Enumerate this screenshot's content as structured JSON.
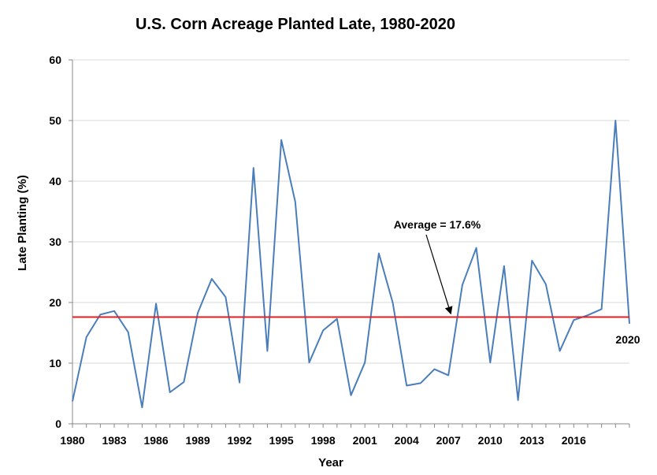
{
  "chart_data": {
    "type": "line",
    "title": "U.S. Corn Acreage Planted Late, 1980-2020",
    "xlabel": "Year",
    "ylabel": "Late Planting (%)",
    "ylim": [
      0,
      60
    ],
    "xlim": [
      1980,
      2020
    ],
    "yticks": [
      0,
      10,
      20,
      30,
      40,
      50,
      60
    ],
    "xticks": [
      1980,
      1983,
      1986,
      1989,
      1992,
      1995,
      1998,
      2001,
      2004,
      2007,
      2010,
      2013,
      2016
    ],
    "grid": true,
    "colors": {
      "series": "#4a7ebb",
      "average": "#e02020",
      "grid": "#d9d9d9"
    },
    "series": [
      {
        "x": [
          1980,
          1981,
          1982,
          1983,
          1984,
          1985,
          1986,
          1987,
          1988,
          1989,
          1990,
          1991,
          1992,
          1993,
          1994,
          1995,
          1996,
          1997,
          1998,
          1999,
          2000,
          2001,
          2002,
          2003,
          2004,
          2005,
          2006,
          2007,
          2008,
          2009,
          2010,
          2011,
          2012,
          2013,
          2014,
          2015,
          2016,
          2017,
          2018,
          2019,
          2020
        ],
        "values": [
          3.7,
          14.3,
          18.0,
          18.6,
          15.1,
          2.7,
          19.8,
          5.2,
          6.9,
          18.3,
          23.9,
          20.9,
          6.8,
          42.2,
          12.0,
          46.8,
          36.6,
          10.1,
          15.4,
          17.3,
          4.7,
          10.1,
          28.1,
          20.0,
          6.3,
          6.7,
          9.0,
          8.0,
          22.9,
          29.0,
          10.1,
          26.0,
          3.9,
          26.9,
          23.0,
          12.0,
          17.1,
          17.9,
          18.9,
          50.0,
          16.5
        ]
      }
    ],
    "average": {
      "value": 17.6,
      "label": "Average = 17.6%"
    },
    "end_label": "2020"
  }
}
